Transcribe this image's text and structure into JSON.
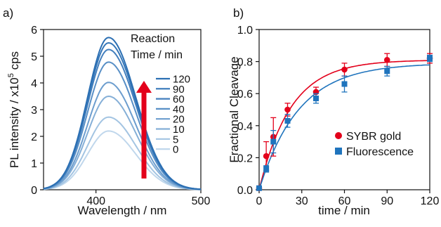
{
  "chart_data": [
    {
      "panel_label": "a)",
      "type": "line",
      "xlabel": "Wavelength / nm",
      "ylabel_prefix": "PL intensity / x10",
      "ylabel_exp": "5",
      "ylabel_suffix": " cps",
      "xlim": [
        350,
        500
      ],
      "ylim": [
        0,
        6
      ],
      "xticks": [
        400,
        500
      ],
      "yticks": [
        0,
        1,
        2,
        3,
        4,
        5,
        6
      ],
      "legend_title_line1": "Reaction",
      "legend_title_line2": "Time / min",
      "legend_arrow_color": "#e3001b",
      "peak_wavelength": 412,
      "series": [
        {
          "name": "120",
          "peak": 5.7,
          "color": "#2b6fb3"
        },
        {
          "name": "90",
          "peak": 5.5,
          "color": "#3677b8"
        },
        {
          "name": "60",
          "peak": 5.25,
          "color": "#437fbd"
        },
        {
          "name": "40",
          "peak": 4.78,
          "color": "#588fc6"
        },
        {
          "name": "20",
          "peak": 4.02,
          "color": "#6c9dce"
        },
        {
          "name": "10",
          "peak": 3.5,
          "color": "#85afd7"
        },
        {
          "name": "5",
          "peak": 2.72,
          "color": "#a3c4e2"
        },
        {
          "name": "0",
          "peak": 2.2,
          "color": "#c0d7ec"
        }
      ]
    },
    {
      "panel_label": "b)",
      "type": "scatter",
      "xlabel": "time / min",
      "ylabel": "Fractional Cleavage",
      "xlim": [
        0,
        120
      ],
      "ylim": [
        0,
        1.0
      ],
      "xticks": [
        0,
        30,
        60,
        90,
        120
      ],
      "yticks": [
        0.0,
        0.2,
        0.4,
        0.6,
        0.8,
        1.0
      ],
      "series": [
        {
          "name": "SYBR gold",
          "marker": "circle",
          "color": "#e3001b",
          "x": [
            0,
            5,
            10,
            20,
            40,
            60,
            90,
            120
          ],
          "y": [
            0.01,
            0.21,
            0.33,
            0.5,
            0.61,
            0.75,
            0.81,
            0.82
          ],
          "err": [
            0.01,
            0.09,
            0.12,
            0.04,
            0.03,
            0.04,
            0.04,
            0.03
          ],
          "fit_plateau": 0.81,
          "fit_k": 0.045
        },
        {
          "name": "Fluorescence",
          "marker": "square",
          "color": "#1f74bd",
          "x": [
            0,
            5,
            10,
            20,
            40,
            60,
            90,
            120
          ],
          "y": [
            0.01,
            0.13,
            0.3,
            0.43,
            0.57,
            0.66,
            0.74,
            0.82
          ],
          "err": [
            0.01,
            0.02,
            0.07,
            0.04,
            0.03,
            0.05,
            0.03,
            0.02
          ],
          "fit_plateau": 0.79,
          "fit_k": 0.036
        }
      ]
    }
  ]
}
